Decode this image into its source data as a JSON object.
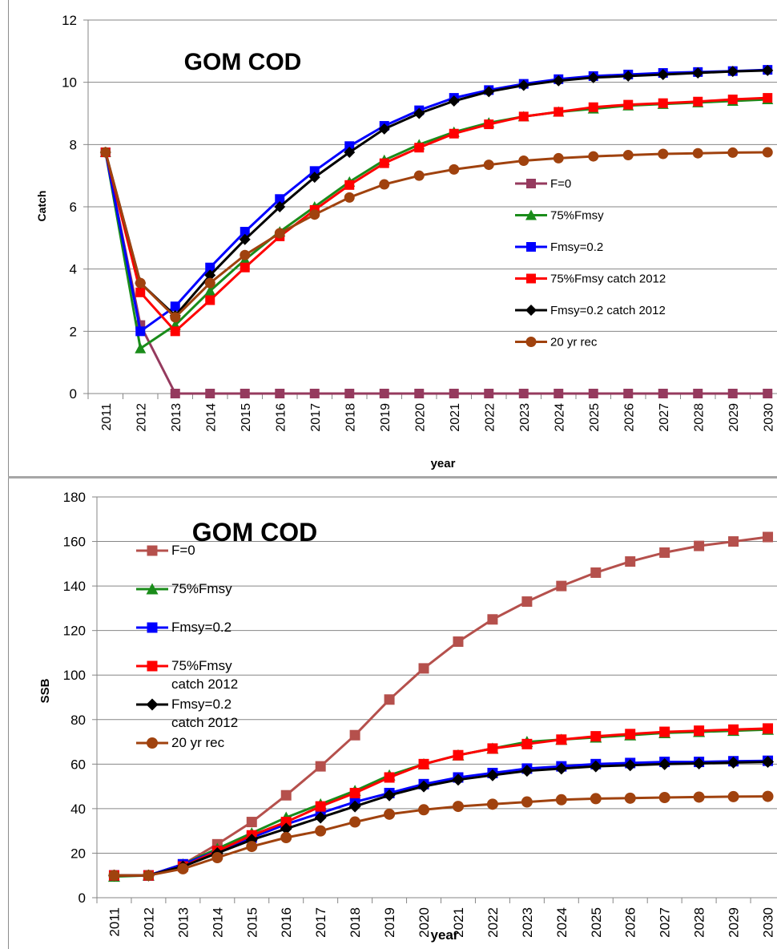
{
  "chart_data": [
    {
      "type": "line",
      "title": "GOM COD",
      "xlabel": "year",
      "ylabel": "Catch",
      "ylim": [
        0,
        12
      ],
      "yticks": [
        0,
        2,
        4,
        6,
        8,
        10,
        12
      ],
      "x": [
        "2011",
        "2012",
        "2013",
        "2014",
        "2015",
        "2016",
        "2017",
        "2018",
        "2019",
        "2020",
        "2021",
        "2022",
        "2023",
        "2024",
        "2025",
        "2026",
        "2027",
        "2028",
        "2029",
        "2030"
      ],
      "grid": "horizontal",
      "legend_position": "right-middle",
      "series": [
        {
          "name": "F=0",
          "color": "#953a5e",
          "marker": "square",
          "values": [
            7.75,
            2.2,
            0,
            0,
            0,
            0,
            0,
            0,
            0,
            0,
            0,
            0,
            0,
            0,
            0,
            0,
            0,
            0,
            0,
            0
          ]
        },
        {
          "name": "75%Fmsy",
          "color": "#1a8c1a",
          "marker": "triangle",
          "values": [
            7.75,
            1.45,
            2.2,
            3.3,
            4.3,
            5.2,
            6.0,
            6.8,
            7.5,
            8.0,
            8.4,
            8.7,
            8.9,
            9.05,
            9.15,
            9.25,
            9.3,
            9.35,
            9.4,
            9.45
          ]
        },
        {
          "name": "Fmsy=0.2",
          "color": "#0000ff",
          "marker": "square",
          "values": [
            7.75,
            2.0,
            2.8,
            4.05,
            5.2,
            6.25,
            7.15,
            7.95,
            8.6,
            9.1,
            9.5,
            9.75,
            9.95,
            10.1,
            10.2,
            10.25,
            10.3,
            10.33,
            10.36,
            10.4
          ]
        },
        {
          "name": "75%Fmsy catch 2012",
          "color": "#ff0000",
          "marker": "square",
          "values": [
            7.75,
            3.25,
            2.0,
            3.0,
            4.05,
            5.05,
            5.9,
            6.7,
            7.4,
            7.9,
            8.35,
            8.65,
            8.9,
            9.05,
            9.2,
            9.28,
            9.33,
            9.38,
            9.45,
            9.5
          ]
        },
        {
          "name": "Fmsy=0.2 catch 2012",
          "color": "#000000",
          "marker": "diamond",
          "values": [
            7.75,
            3.55,
            2.5,
            3.8,
            4.95,
            6.0,
            6.95,
            7.75,
            8.5,
            9.0,
            9.4,
            9.7,
            9.9,
            10.05,
            10.15,
            10.2,
            10.25,
            10.3,
            10.35,
            10.38
          ]
        },
        {
          "name": "20 yr rec",
          "color": "#a0420e",
          "marker": "circle",
          "values": [
            7.75,
            3.55,
            2.45,
            3.55,
            4.45,
            5.15,
            5.75,
            6.3,
            6.72,
            7.0,
            7.2,
            7.35,
            7.48,
            7.56,
            7.62,
            7.66,
            7.7,
            7.72,
            7.74,
            7.75
          ]
        }
      ]
    },
    {
      "type": "line",
      "title": "GOM COD",
      "xlabel": "year",
      "ylabel": "SSB",
      "ylim": [
        0,
        180
      ],
      "yticks": [
        0,
        20,
        40,
        60,
        80,
        100,
        120,
        140,
        160,
        180
      ],
      "x": [
        "2011",
        "2012",
        "2013",
        "2014",
        "2015",
        "2016",
        "2017",
        "2018",
        "2019",
        "2020",
        "2021",
        "2022",
        "2023",
        "2024",
        "2025",
        "2026",
        "2027",
        "2028",
        "2029",
        "2030"
      ],
      "grid": "horizontal",
      "legend_position": "left-middle",
      "series": [
        {
          "name": "F=0",
          "color": "#b5504c",
          "marker": "square",
          "values": [
            10,
            10,
            15,
            24,
            34,
            46,
            59,
            73,
            89,
            103,
            115,
            125,
            133,
            140,
            146,
            151,
            155,
            158,
            160,
            162
          ]
        },
        {
          "name": "75%Fmsy",
          "color": "#1a8c1a",
          "marker": "triangle",
          "values": [
            9.5,
            10,
            15,
            22,
            29,
            36,
            42,
            48,
            55,
            60,
            64,
            67,
            70,
            71,
            72,
            73,
            74,
            74.5,
            75,
            75.5
          ]
        },
        {
          "name": "Fmsy=0.2",
          "color": "#0000ff",
          "marker": "square",
          "values": [
            10,
            10,
            15,
            21,
            27,
            33,
            38,
            43,
            47,
            51,
            54,
            56,
            58,
            59,
            60,
            60.5,
            61,
            61,
            61.3,
            61.5
          ]
        },
        {
          "name": "75%Fmsy catch 2012",
          "color": "#ff0000",
          "marker": "square",
          "values": [
            10,
            10,
            14,
            21,
            28,
            34,
            41,
            47,
            54,
            60,
            64,
            67,
            69,
            71,
            72.5,
            73.5,
            74.5,
            75,
            75.5,
            76
          ]
        },
        {
          "name": "Fmsy=0.2 catch 2012",
          "color": "#000000",
          "marker": "diamond",
          "values": [
            10,
            10,
            14,
            20,
            26,
            31,
            36,
            41,
            46,
            50,
            53,
            55,
            57,
            58,
            59,
            59.5,
            60,
            60.3,
            60.7,
            61
          ]
        },
        {
          "name": "20 yr rec",
          "color": "#a0420e",
          "marker": "circle",
          "values": [
            10,
            10,
            13,
            18,
            23,
            27,
            30,
            34,
            37.5,
            39.5,
            41,
            42,
            43,
            44,
            44.5,
            44.7,
            45,
            45.2,
            45.4,
            45.5
          ]
        }
      ]
    }
  ]
}
